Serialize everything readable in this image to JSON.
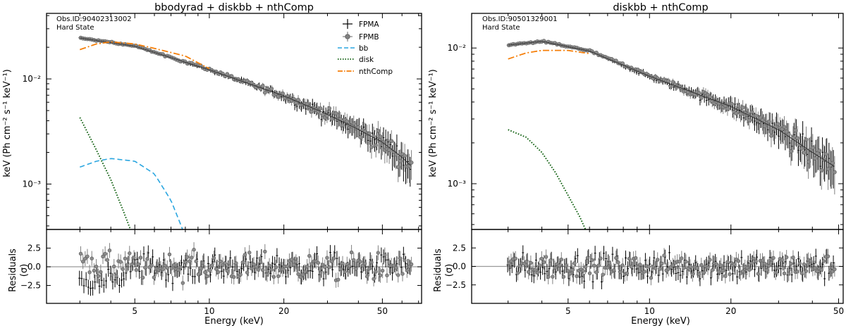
{
  "chart_data": [
    {
      "type": "scatter",
      "title": "bbodyrad + diskbb + nthComp",
      "annotation_line1": "Obs.ID:90402313002",
      "annotation_line2": "Hard State",
      "xlabel": "Energy (keV)",
      "ylabel": "keV (Ph cm⁻² s⁻¹ keV⁻¹)",
      "residual_ylabel_line1": "Residuals",
      "residual_ylabel_line2": "(σ)",
      "x_scale": "log",
      "y_scale": "log",
      "xlim": [
        2.2,
        72
      ],
      "ylim": [
        0.00037,
        0.042
      ],
      "residual_ylim": [
        -4.9,
        5.0
      ],
      "x_tick_values": [
        5,
        10,
        20,
        50
      ],
      "x_tick_labels": [
        "5",
        "10",
        "20",
        "50"
      ],
      "y_tick_values": [
        0.001,
        0.01
      ],
      "y_tick_labels": [
        "10⁻³",
        "10⁻²"
      ],
      "residual_tick_values": [
        -2.5,
        0.0,
        2.5
      ],
      "residual_tick_labels": [
        "−2.5",
        "0.0",
        "2.5"
      ],
      "legend_position": "top-right",
      "legend_entries": [
        "FPMA",
        "FPMB",
        "bb",
        "disk",
        "nthComp"
      ],
      "series": [
        {
          "name": "FPMA",
          "style": "black crosses",
          "x": [
            3,
            5,
            10,
            20,
            30,
            40,
            50,
            60,
            65
          ],
          "y": [
            0.0245,
            0.0205,
            0.0122,
            0.0069,
            0.0046,
            0.0033,
            0.0025,
            0.0018,
            0.0015
          ]
        },
        {
          "name": "FPMB",
          "style": "grey circles",
          "x": [
            3,
            5,
            10,
            20,
            30,
            40,
            50,
            60,
            65
          ],
          "y": [
            0.0245,
            0.0205,
            0.0122,
            0.0069,
            0.0046,
            0.0033,
            0.0025,
            0.0018,
            0.0015
          ]
        },
        {
          "name": "bb",
          "style": "blue dashed",
          "x": [
            3,
            3.5,
            4,
            5,
            6,
            7,
            7.8
          ],
          "y": [
            0.00145,
            0.00165,
            0.00175,
            0.00165,
            0.00125,
            0.0007,
            0.00037
          ]
        },
        {
          "name": "disk",
          "style": "green dotted",
          "x": [
            3,
            3.5,
            4,
            4.5,
            4.8
          ],
          "y": [
            0.0043,
            0.0021,
            0.0011,
            0.00055,
            0.00037
          ]
        },
        {
          "name": "nthComp",
          "style": "orange dash-dot",
          "x": [
            3,
            3.5,
            4,
            5,
            6,
            8,
            10
          ],
          "y": [
            0.019,
            0.0215,
            0.0225,
            0.0215,
            0.0195,
            0.0165,
            0.0125
          ]
        }
      ],
      "model_total": {
        "x": [
          3,
          5,
          10,
          20,
          30,
          40,
          50,
          60,
          65
        ],
        "y": [
          0.0245,
          0.0205,
          0.0122,
          0.0069,
          0.0046,
          0.0033,
          0.0025,
          0.0018,
          0.0015
        ]
      },
      "residual_band": {
        "x_start": 3,
        "x_end": 65,
        "spread": 1.6,
        "low_energy_offset": -1.3
      }
    },
    {
      "type": "scatter",
      "title": "diskbb + nthComp",
      "annotation_line1": "Obs.ID:90501329001",
      "annotation_line2": "Hard State",
      "xlabel": "Energy (keV)",
      "ylabel": "keV (Ph cm⁻² s⁻¹ keV⁻¹)",
      "residual_ylabel_line1": "Residuals",
      "residual_ylabel_line2": "(σ)",
      "x_scale": "log",
      "y_scale": "log",
      "xlim": [
        2.2,
        52
      ],
      "ylim": [
        0.00046,
        0.018
      ],
      "residual_ylim": [
        -5.0,
        5.0
      ],
      "x_tick_values": [
        5,
        10,
        20,
        50
      ],
      "x_tick_labels": [
        "5",
        "10",
        "20",
        "50"
      ],
      "y_tick_values": [
        0.001,
        0.01
      ],
      "y_tick_labels": [
        "10⁻³",
        "10⁻²"
      ],
      "residual_tick_values": [
        -2.5,
        0.0,
        2.5
      ],
      "residual_tick_labels": [
        "−2.5",
        "0.0",
        "2.5"
      ],
      "series": [
        {
          "name": "FPMA",
          "style": "black crosses",
          "x": [
            3,
            4,
            6,
            10,
            20,
            30,
            40,
            48
          ],
          "y": [
            0.0105,
            0.0112,
            0.0095,
            0.0062,
            0.0037,
            0.0025,
            0.0017,
            0.00135
          ]
        },
        {
          "name": "FPMB",
          "style": "grey circles",
          "x": [
            3,
            4,
            6,
            10,
            20,
            30,
            40,
            48
          ],
          "y": [
            0.0105,
            0.0112,
            0.0095,
            0.0062,
            0.0037,
            0.0025,
            0.0017,
            0.00135
          ]
        },
        {
          "name": "disk",
          "style": "green dotted",
          "x": [
            3,
            3.5,
            4,
            4.5,
            5,
            5.5,
            5.8
          ],
          "y": [
            0.0025,
            0.0022,
            0.0017,
            0.0012,
            0.00082,
            0.00058,
            0.00046
          ]
        },
        {
          "name": "nthComp",
          "style": "orange dash-dot",
          "x": [
            3,
            3.5,
            4,
            5,
            6
          ],
          "y": [
            0.0083,
            0.0092,
            0.0096,
            0.0096,
            0.0091
          ]
        }
      ],
      "model_total": {
        "x": [
          3,
          4,
          6,
          10,
          20,
          30,
          40,
          48
        ],
        "y": [
          0.0105,
          0.0112,
          0.0095,
          0.0062,
          0.0037,
          0.0025,
          0.0017,
          0.00135
        ]
      },
      "residual_band": {
        "x_start": 3,
        "x_end": 48,
        "spread": 1.5,
        "low_energy_offset": 0
      }
    }
  ],
  "colors": {
    "fpma": "#000000",
    "fpmb": "#808080",
    "bb": "#2aa6e0",
    "disk": "#0b5d0b",
    "nthcomp": "#f57f0a",
    "zero_line": "#9a9a9a"
  }
}
